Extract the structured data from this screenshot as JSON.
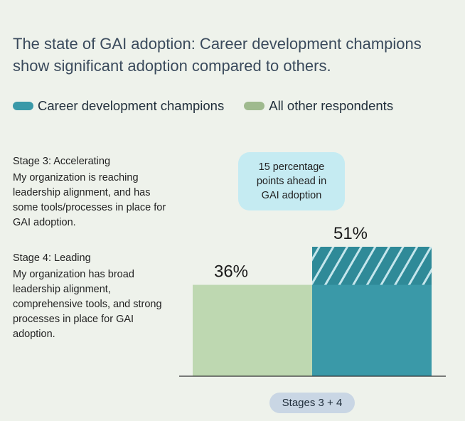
{
  "title": "The state of GAI adoption: Career development champions show significant adoption compared to others.",
  "legend": [
    {
      "label": "Career development champions",
      "color": "#3a99a8"
    },
    {
      "label": "All other respondents",
      "color": "#9fba8e"
    }
  ],
  "stages": [
    {
      "title": "Stage 3: Accelerating",
      "description": "My organization is reaching leadership alignment, and has some tools/processes in place for GAI adoption."
    },
    {
      "title": "Stage 4: Leading",
      "description": "My organization has broad leadership alignment, comprehensive tools, and strong processes in place for GAI adoption."
    }
  ],
  "callout": "15 percentage points ahead in GAI adoption",
  "chart_data": {
    "type": "bar",
    "categories": [
      "Stages 3 + 4"
    ],
    "series": [
      {
        "name": "All other respondents",
        "values": [
          36
        ],
        "label": "36%",
        "color": "#bed8b1"
      },
      {
        "name": "Career development champions",
        "values": [
          51
        ],
        "label": "51%",
        "color": "#3a99a8",
        "hatched_gap": 15
      }
    ],
    "ylim": [
      0,
      51
    ],
    "grid": false,
    "legend_position": "top-left"
  }
}
